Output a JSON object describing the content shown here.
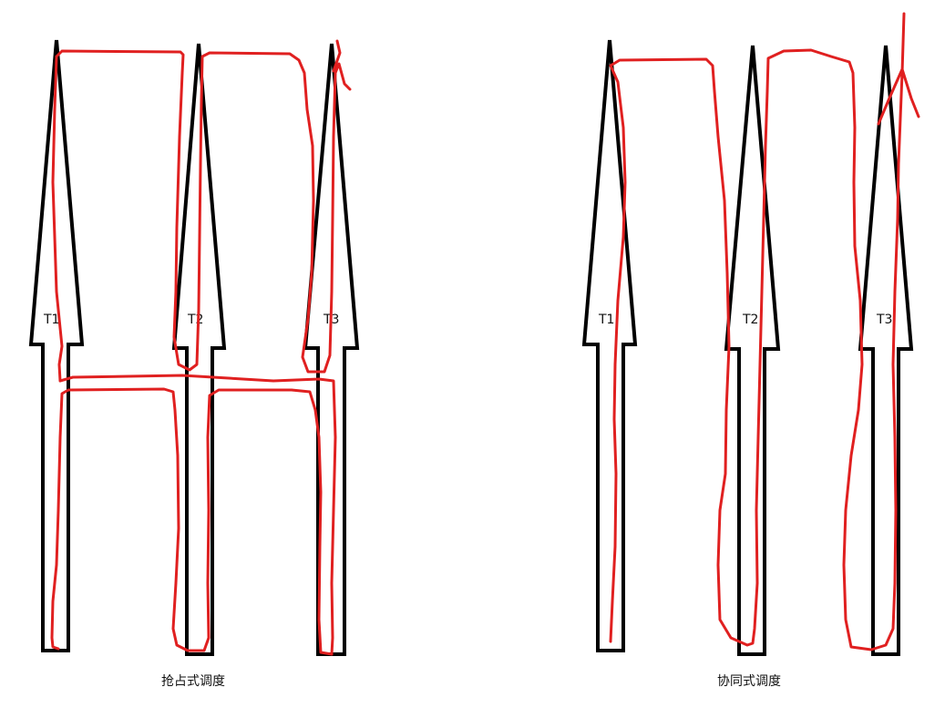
{
  "panels": [
    {
      "caption": "抢占式调度",
      "threads": [
        {
          "label": "T1"
        },
        {
          "label": "T2"
        },
        {
          "label": "T3"
        }
      ]
    },
    {
      "caption": "协同式调度",
      "threads": [
        {
          "label": "T1"
        },
        {
          "label": "T2"
        },
        {
          "label": "T3"
        }
      ]
    }
  ],
  "colors": {
    "outline": "#000000",
    "trace": "#e02020",
    "background": "#ffffff"
  }
}
